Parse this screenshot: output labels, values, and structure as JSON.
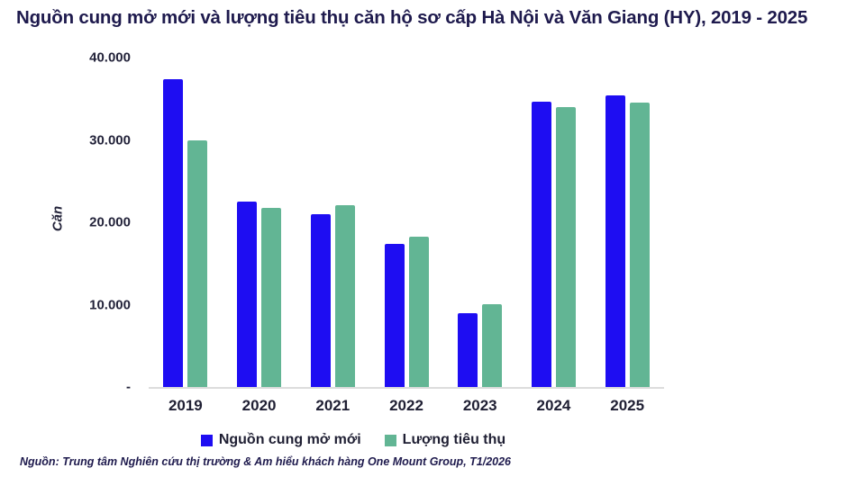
{
  "source_note": "Nguồn: Trung tâm Nghiên cứu thị trường & Am hiểu khách hàng One Mount Group, T1/2026",
  "colors": {
    "new_supply_blue": "#1e0df2",
    "absorption_green": "#62b594",
    "axis_line": "#dcdcdc",
    "title_text": "#1e1a4d",
    "axis_text": "#23233a"
  },
  "chart_data": {
    "type": "bar",
    "title": "Nguồn cung mở mới và lượng tiêu thụ căn hộ sơ cấp Hà Nội và Văn Giang (HY), 2019 - 2025",
    "xlabel": "",
    "ylabel": "Căn",
    "ylim": [
      0,
      40000
    ],
    "grid": false,
    "legend_position": "bottom",
    "categories": [
      "2019",
      "2020",
      "2021",
      "2022",
      "2023",
      "2024",
      "2025"
    ],
    "series": [
      {
        "key": "nguon-cung-mo-moi",
        "name": "Nguồn cung mở mới",
        "color": "#1e0df2",
        "values": [
          37400,
          22500,
          21000,
          17400,
          9000,
          34600,
          35400
        ]
      },
      {
        "key": "luong-tieu-thu",
        "name": "Lượng tiêu thụ",
        "color": "#62b594",
        "values": [
          30000,
          21800,
          22100,
          18200,
          10100,
          34000,
          34500
        ]
      }
    ],
    "y_ticks": [
      {
        "label": "40.000",
        "value": 40000
      },
      {
        "label": "30.000",
        "value": 30000
      },
      {
        "label": "20.000",
        "value": 20000
      },
      {
        "label": "10.000",
        "value": 10000
      },
      {
        "label": "-",
        "value": 0
      }
    ]
  }
}
